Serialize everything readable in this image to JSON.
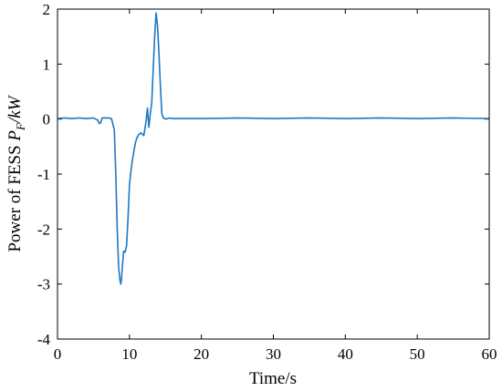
{
  "chart_data": {
    "type": "line",
    "xlabel": "Time/s",
    "ylabel": {
      "prefix": "Power of FESS ",
      "symbol": "P",
      "subscript": "F",
      "unit": "/kW"
    },
    "xlim": [
      0,
      60
    ],
    "ylim": [
      -4,
      2
    ],
    "xticks": [
      0,
      10,
      20,
      30,
      40,
      50,
      60
    ],
    "yticks": [
      2,
      1,
      0,
      -1,
      -2,
      -3,
      -4
    ],
    "grid": false,
    "legend": false,
    "series": [
      {
        "color": "#1f77c4",
        "x": [
          0,
          1,
          2,
          3,
          4,
          5,
          5.6,
          5.8,
          6.0,
          6.2,
          6.4,
          7.0,
          7.5,
          7.9,
          8.1,
          8.3,
          8.5,
          8.7,
          8.8,
          8.9,
          9.0,
          9.2,
          9.4,
          9.6,
          9.8,
          10.0,
          10.2,
          10.4,
          10.6,
          10.8,
          11.0,
          11.3,
          11.6,
          12.0,
          12.3,
          12.5,
          12.7,
          12.9,
          13.1,
          13.3,
          13.5,
          13.7,
          13.9,
          14.1,
          14.3,
          14.5,
          14.7,
          14.9,
          15.1,
          15.5,
          16,
          20,
          25,
          30,
          35,
          40,
          45,
          50,
          55,
          60
        ],
        "y": [
          0.01,
          0.02,
          0.01,
          0.02,
          0.01,
          0.02,
          -0.02,
          -0.08,
          -0.07,
          0.02,
          0.02,
          0.02,
          0.01,
          -0.2,
          -1.0,
          -2.0,
          -2.7,
          -2.95,
          -3.0,
          -2.9,
          -2.7,
          -2.4,
          -2.42,
          -2.3,
          -1.8,
          -1.2,
          -0.95,
          -0.75,
          -0.6,
          -0.45,
          -0.35,
          -0.28,
          -0.25,
          -0.3,
          -0.05,
          0.2,
          -0.15,
          0.1,
          0.3,
          0.9,
          1.5,
          1.93,
          1.7,
          1.2,
          0.6,
          0.1,
          0.02,
          0.01,
          0.0,
          0.02,
          0.01,
          0.01,
          0.02,
          0.01,
          0.02,
          0.01,
          0.02,
          0.01,
          0.02,
          0.01
        ]
      }
    ]
  }
}
